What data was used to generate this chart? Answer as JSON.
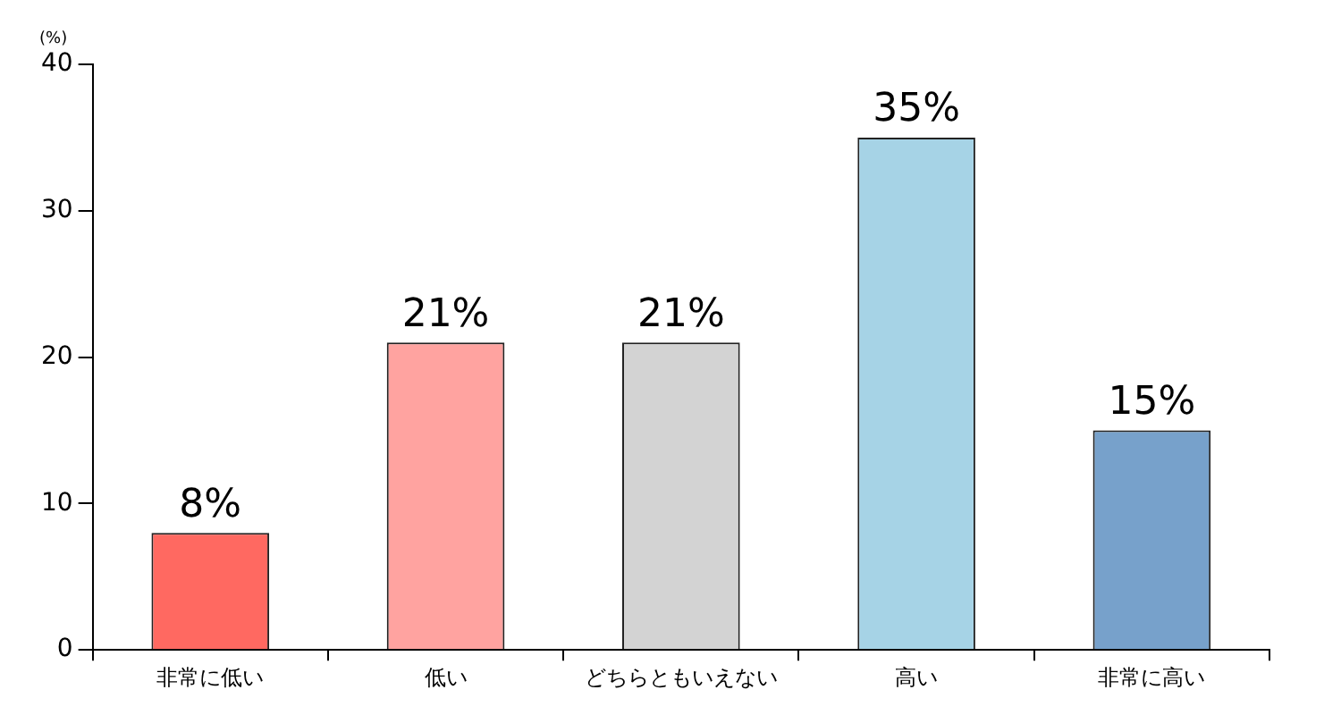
{
  "chart_data": {
    "type": "bar",
    "ylabel": "(%)",
    "categories": [
      "非常に低い",
      "低い",
      "どちらともいえない",
      "高い",
      "非常に高い"
    ],
    "values": [
      8,
      21,
      21,
      35,
      15
    ],
    "colors": [
      "#ff6961",
      "#ffa3a0",
      "#d3d3d3",
      "#a6d3e6",
      "#77a1cb"
    ],
    "value_labels": [
      "8%",
      "21%",
      "21%",
      "35%",
      "15%"
    ],
    "ylim": [
      0,
      40
    ],
    "yticks": [
      0,
      10,
      20,
      30,
      40
    ],
    "grid": false,
    "legend": false
  }
}
